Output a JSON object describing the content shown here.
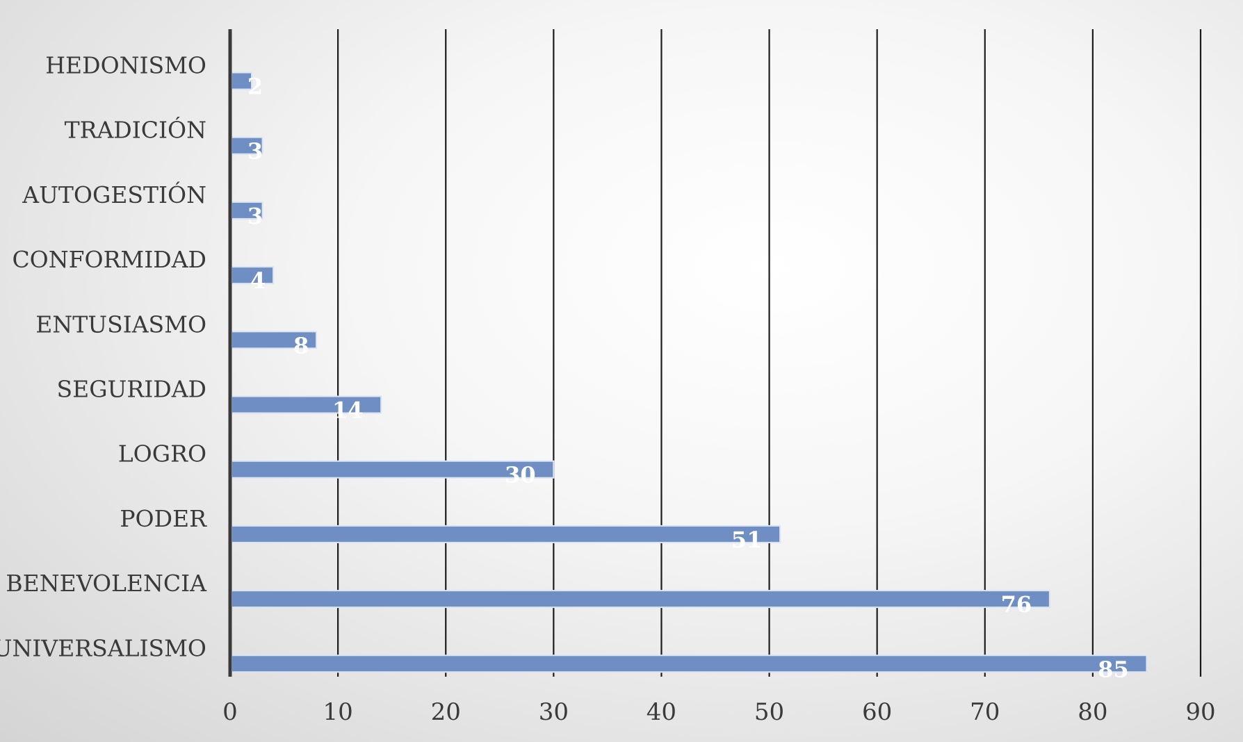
{
  "chart_data": {
    "type": "bar",
    "orientation": "horizontal",
    "categories": [
      "HEDONISMO",
      "TRADICIÓN",
      "AUTOGESTIÓN",
      "CONFORMIDAD",
      "ENTUSIASMO",
      "SEGURIDAD",
      "LOGRO",
      "PODER",
      "BENEVOLENCIA",
      "UNIVERSALISMO"
    ],
    "values": [
      2,
      3,
      3,
      4,
      8,
      14,
      30,
      51,
      76,
      85
    ],
    "xlim": [
      0,
      90
    ],
    "x_ticks": [
      "0",
      "10",
      "20",
      "30",
      "40",
      "50",
      "60",
      "70",
      "80",
      "90"
    ],
    "grid": "vertical",
    "bar_color": "#6f8fc4",
    "bar_edge_color": "#dbe4f2",
    "label_color": "#ffffff"
  }
}
